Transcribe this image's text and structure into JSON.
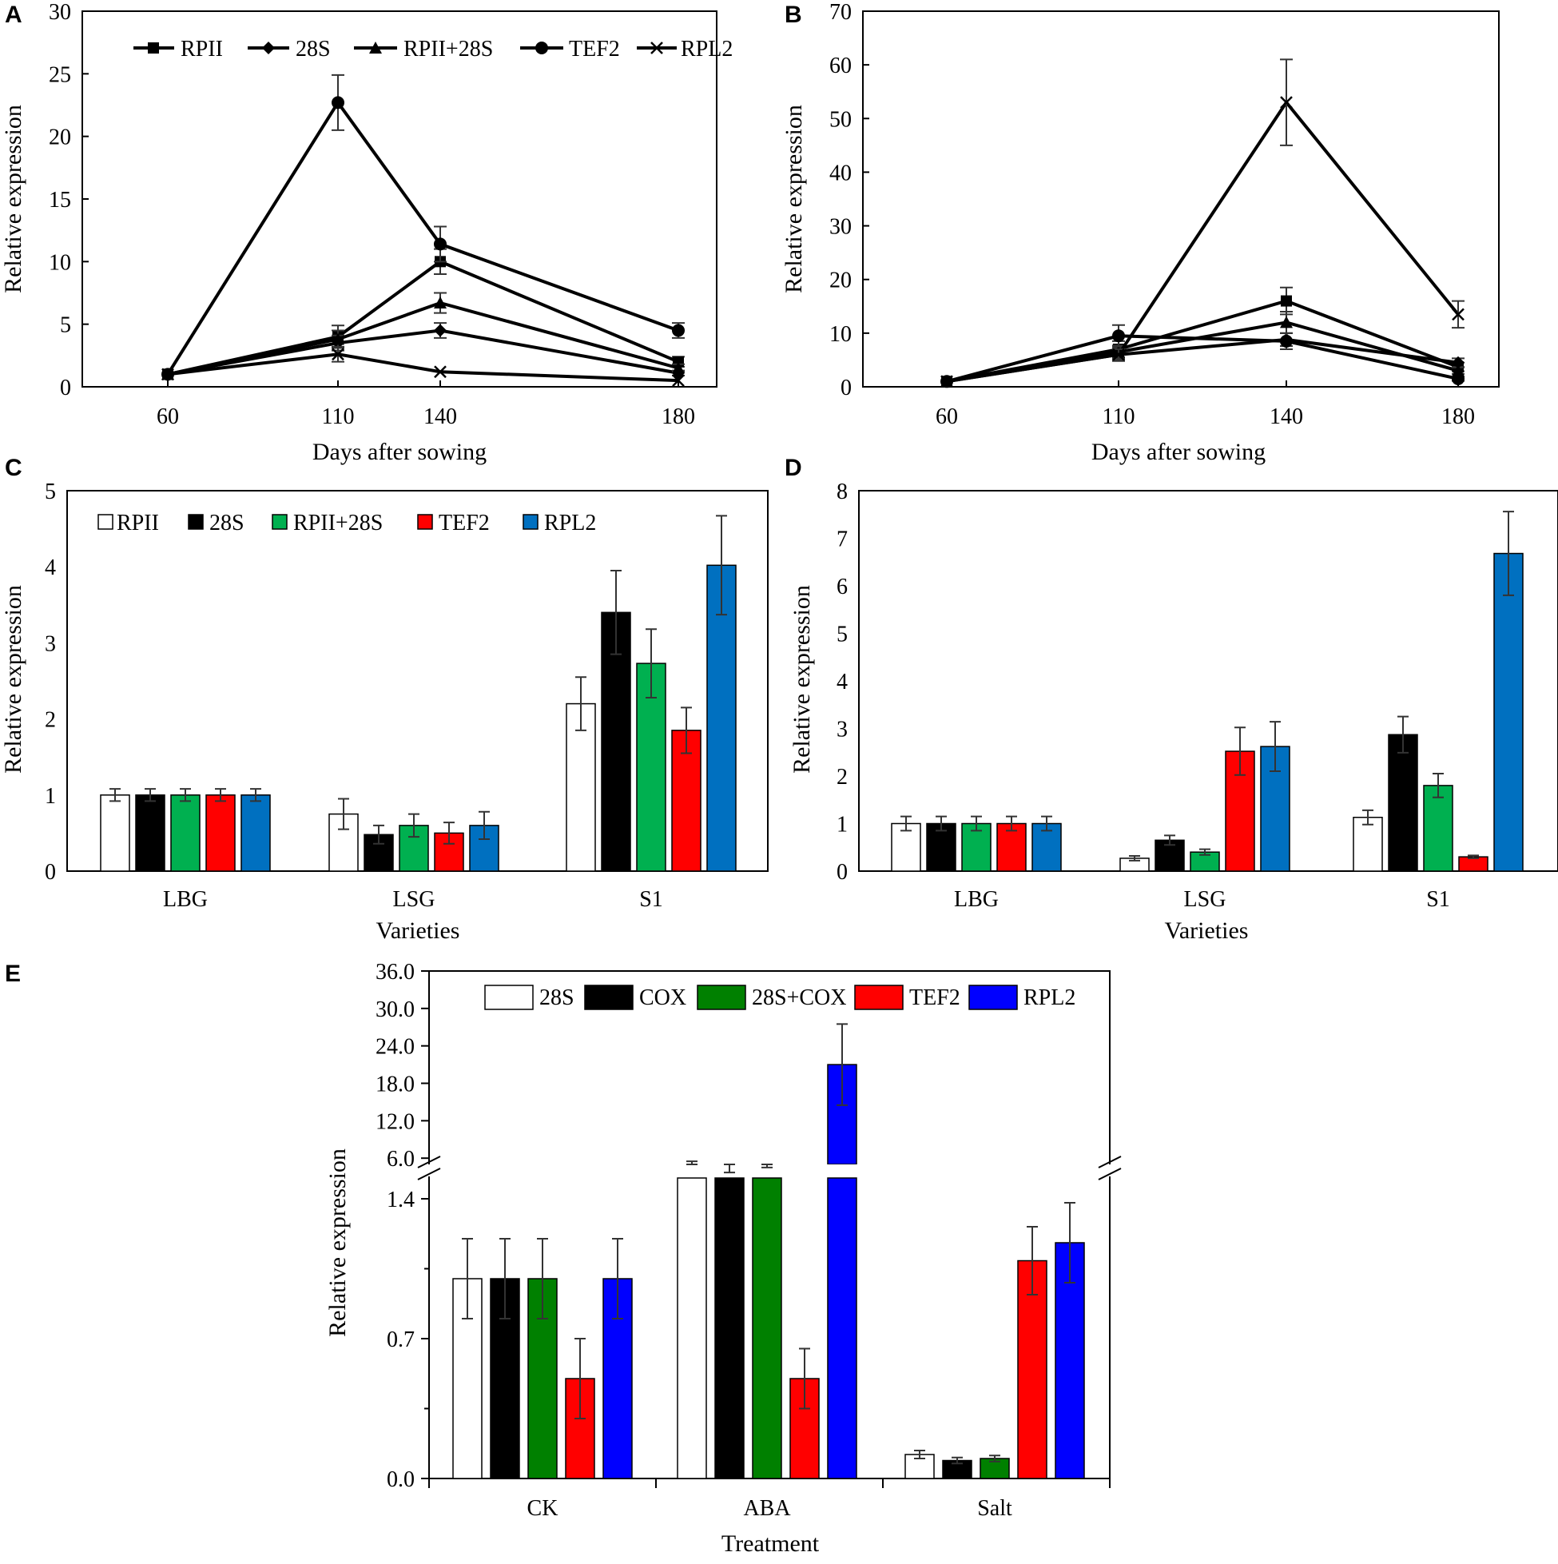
{
  "colors": {
    "white": "#ffffff",
    "black": "#000000",
    "green_cd": "#00b050",
    "red": "#ff0000",
    "blue_cd": "#0070c0",
    "green_e": "#008000",
    "blue_e": "#0000ff"
  },
  "chart_data": [
    {
      "id": "A",
      "type": "line",
      "letter": "A",
      "xlabel": "Days after sowing",
      "ylabel": "Relative  expression",
      "categories": [
        "60",
        "110",
        "140",
        "180"
      ],
      "ylim": [
        0,
        30
      ],
      "yticks": [
        "0",
        "5",
        "10",
        "15",
        "20",
        "25",
        "30"
      ],
      "legend": "top-left",
      "series": [
        {
          "name": "RPII",
          "marker": "square",
          "values": [
            1,
            4,
            10,
            2
          ],
          "errors": [
            0,
            0.9,
            1.0,
            0.4
          ]
        },
        {
          "name": "28S",
          "marker": "diamond",
          "values": [
            1,
            3.5,
            4.5,
            1.1
          ],
          "errors": [
            0,
            0.6,
            0.6,
            0.2
          ]
        },
        {
          "name": "RPII+28S",
          "marker": "triangle",
          "values": [
            1,
            3.8,
            6.7,
            1.5
          ],
          "errors": [
            0,
            0.7,
            0.8,
            0.3
          ]
        },
        {
          "name": "TEF2",
          "marker": "circle",
          "values": [
            1,
            22.7,
            11.4,
            4.5
          ],
          "errors": [
            0,
            2.2,
            1.4,
            0.6
          ]
        },
        {
          "name": "RPL2",
          "marker": "x",
          "values": [
            1,
            2.6,
            1.2,
            0.5
          ],
          "errors": [
            0,
            0.6,
            0,
            0
          ]
        }
      ]
    },
    {
      "id": "B",
      "type": "line",
      "letter": "B",
      "xlabel": "Days after sowing",
      "ylabel": "Relative  expression",
      "categories": [
        "60",
        "110",
        "140",
        "180"
      ],
      "ylim": [
        0,
        70
      ],
      "yticks": [
        "0",
        "10",
        "20",
        "30",
        "40",
        "50",
        "60",
        "70"
      ],
      "series": [
        {
          "name": "RPII",
          "marker": "square",
          "values": [
            1,
            7,
            16,
            3.7
          ],
          "errors": [
            0,
            1.5,
            2.5,
            0.8
          ]
        },
        {
          "name": "28S",
          "marker": "diamond",
          "values": [
            1,
            6,
            8.8,
            4.5
          ],
          "errors": [
            0,
            1.2,
            1.2,
            0.8
          ]
        },
        {
          "name": "RPII+28S",
          "marker": "triangle",
          "values": [
            1,
            6.5,
            12,
            3
          ],
          "errors": [
            0,
            1.2,
            2.0,
            0.6
          ]
        },
        {
          "name": "TEF2",
          "marker": "circle",
          "values": [
            1,
            9.5,
            8.5,
            1.5
          ],
          "errors": [
            0,
            2.0,
            1.5,
            0.4
          ]
        },
        {
          "name": "RPL2",
          "marker": "x",
          "values": [
            1,
            6,
            53,
            13.5
          ],
          "errors": [
            0,
            1.0,
            8.0,
            2.5
          ]
        }
      ]
    },
    {
      "id": "C",
      "type": "bar",
      "letter": "C",
      "xlabel": "Varieties",
      "ylabel": "Relative  expression",
      "categories": [
        "LBG",
        "LSG",
        "S1"
      ],
      "ylim": [
        0,
        5
      ],
      "yticks": [
        "0",
        "1",
        "2",
        "3",
        "4",
        "5"
      ],
      "legend": "top-left",
      "series": [
        {
          "name": "RPII",
          "color": "#ffffff",
          "values": [
            1,
            0.75,
            2.2
          ],
          "errors": [
            0.08,
            0.2,
            0.35
          ]
        },
        {
          "name": "28S",
          "color": "#000000",
          "values": [
            1,
            0.48,
            3.4
          ],
          "errors": [
            0.08,
            0.12,
            0.55
          ]
        },
        {
          "name": "RPII+28S",
          "color": "#00b050",
          "values": [
            1,
            0.6,
            2.73
          ],
          "errors": [
            0.08,
            0.15,
            0.45
          ]
        },
        {
          "name": "TEF2",
          "color": "#ff0000",
          "values": [
            1,
            0.5,
            1.85
          ],
          "errors": [
            0.08,
            0.14,
            0.3
          ]
        },
        {
          "name": "RPL2",
          "color": "#0070c0",
          "values": [
            1,
            0.6,
            4.02
          ],
          "errors": [
            0.08,
            0.18,
            0.65
          ]
        }
      ]
    },
    {
      "id": "D",
      "type": "bar",
      "letter": "D",
      "xlabel": "Varieties",
      "ylabel": "Relative  expression",
      "categories": [
        "LBG",
        "LSG",
        "S1"
      ],
      "ylim": [
        0,
        8
      ],
      "yticks": [
        "0",
        "1",
        "2",
        "3",
        "4",
        "5",
        "6",
        "7",
        "8"
      ],
      "series": [
        {
          "name": "RPII",
          "color": "#ffffff",
          "values": [
            1,
            0.27,
            1.13
          ],
          "errors": [
            0.15,
            0.05,
            0.15
          ]
        },
        {
          "name": "28S",
          "color": "#000000",
          "values": [
            1,
            0.65,
            2.87
          ],
          "errors": [
            0.15,
            0.1,
            0.38
          ]
        },
        {
          "name": "RPII+28S",
          "color": "#00b050",
          "values": [
            1,
            0.4,
            1.8
          ],
          "errors": [
            0.15,
            0.06,
            0.25
          ]
        },
        {
          "name": "TEF2",
          "color": "#ff0000",
          "values": [
            1,
            2.52,
            0.3
          ],
          "errors": [
            0.15,
            0.5,
            0.03
          ]
        },
        {
          "name": "RPL2",
          "color": "#0070c0",
          "values": [
            1,
            2.62,
            6.68
          ],
          "errors": [
            0.15,
            0.52,
            0.88
          ]
        }
      ]
    },
    {
      "id": "E",
      "type": "bar",
      "letter": "E",
      "xlabel": "Treatment",
      "ylabel": "Relative expression",
      "categories": [
        "CK",
        "ABA",
        "Salt"
      ],
      "broken_axis": {
        "lower_range": [
          0,
          1.4
        ],
        "upper_range": [
          5,
          36
        ]
      },
      "yticks_lower": [
        "0.0",
        "0.7",
        "1.4"
      ],
      "yticks_upper": [
        "6.0",
        "12.0",
        "18.0",
        "24.0",
        "30.0",
        "36.0"
      ],
      "legend": "top",
      "series": [
        {
          "name": "28S",
          "color": "#ffffff",
          "values": [
            1.0,
            4.2,
            0.12
          ],
          "errors": [
            0.2,
            1.3,
            0.02
          ]
        },
        {
          "name": "COX",
          "color": "#000000",
          "values": [
            1.0,
            2.9,
            0.09
          ],
          "errors": [
            0.2,
            0.8,
            0.015
          ]
        },
        {
          "name": "28S+COX",
          "color": "#008000",
          "values": [
            1.0,
            3.5,
            0.1
          ],
          "errors": [
            0.2,
            1.0,
            0.015
          ]
        },
        {
          "name": "TEF2",
          "color": "#ff0000",
          "values": [
            0.5,
            0.5,
            1.09
          ],
          "errors": [
            0.2,
            0.15,
            0.17
          ]
        },
        {
          "name": "RPL2",
          "color": "#0000ff",
          "values": [
            1.0,
            21,
            1.18
          ],
          "errors": [
            0.2,
            6.5,
            0.2
          ]
        }
      ]
    }
  ]
}
